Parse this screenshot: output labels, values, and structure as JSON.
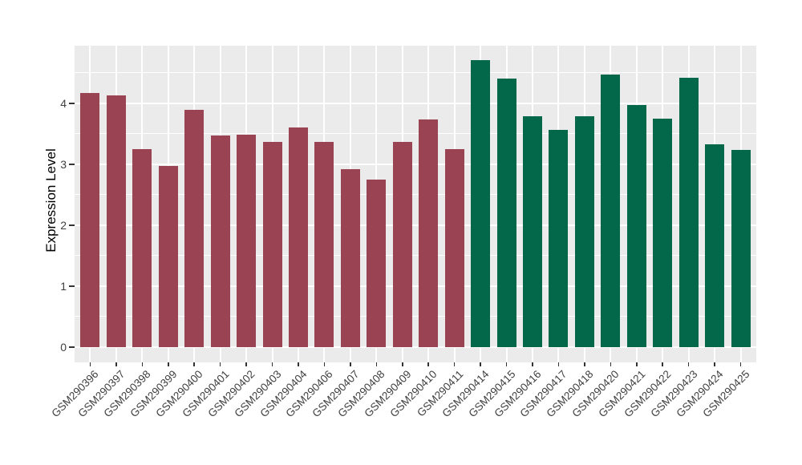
{
  "figure": {
    "background": "#FFFFFF",
    "panel_background": "#EBEBEB",
    "gridline_color": "#FFFFFF",
    "axis_text_color": "#404040",
    "axis_title_color": "#000000",
    "tick_mark_color": "#333333"
  },
  "chart_data": {
    "type": "bar",
    "title": "",
    "xlabel": "",
    "ylabel": "Expression Level",
    "ylim": [
      0,
      4.94
    ],
    "yticks": [
      0,
      1,
      2,
      3,
      4
    ],
    "yticks_minor": [
      0.5,
      1.5,
      2.5,
      3.5,
      4.5
    ],
    "grid": "white major and minor horizontal lines plus vertical line per category on grey panel",
    "legend_position": "none",
    "x_label_angle": 45,
    "categories": [
      "GSM290396",
      "GSM290397",
      "GSM290398",
      "GSM290399",
      "GSM290400",
      "GSM290401",
      "GSM290402",
      "GSM290403",
      "GSM290404",
      "GSM290406",
      "GSM290407",
      "GSM290408",
      "GSM290409",
      "GSM290410",
      "GSM290411",
      "GSM290414",
      "GSM290415",
      "GSM290416",
      "GSM290417",
      "GSM290418",
      "GSM290420",
      "GSM290421",
      "GSM290422",
      "GSM290423",
      "GSM290424",
      "GSM290425"
    ],
    "values": [
      4.17,
      4.13,
      3.24,
      2.97,
      3.89,
      3.47,
      3.48,
      3.37,
      3.6,
      3.36,
      2.92,
      2.74,
      3.36,
      3.73,
      3.25,
      4.71,
      4.4,
      3.78,
      3.56,
      3.78,
      4.47,
      3.97,
      3.75,
      4.41,
      3.32,
      3.23
    ],
    "bar_fill_colors": [
      "#9A4353",
      "#9A4353",
      "#9A4353",
      "#9A4353",
      "#9A4353",
      "#9A4353",
      "#9A4353",
      "#9A4353",
      "#9A4353",
      "#9A4353",
      "#9A4353",
      "#9A4353",
      "#9A4353",
      "#9A4353",
      "#9A4353",
      "#026849",
      "#026849",
      "#026849",
      "#026849",
      "#026849",
      "#026849",
      "#026849",
      "#026849",
      "#026849",
      "#026849",
      "#026849"
    ]
  }
}
